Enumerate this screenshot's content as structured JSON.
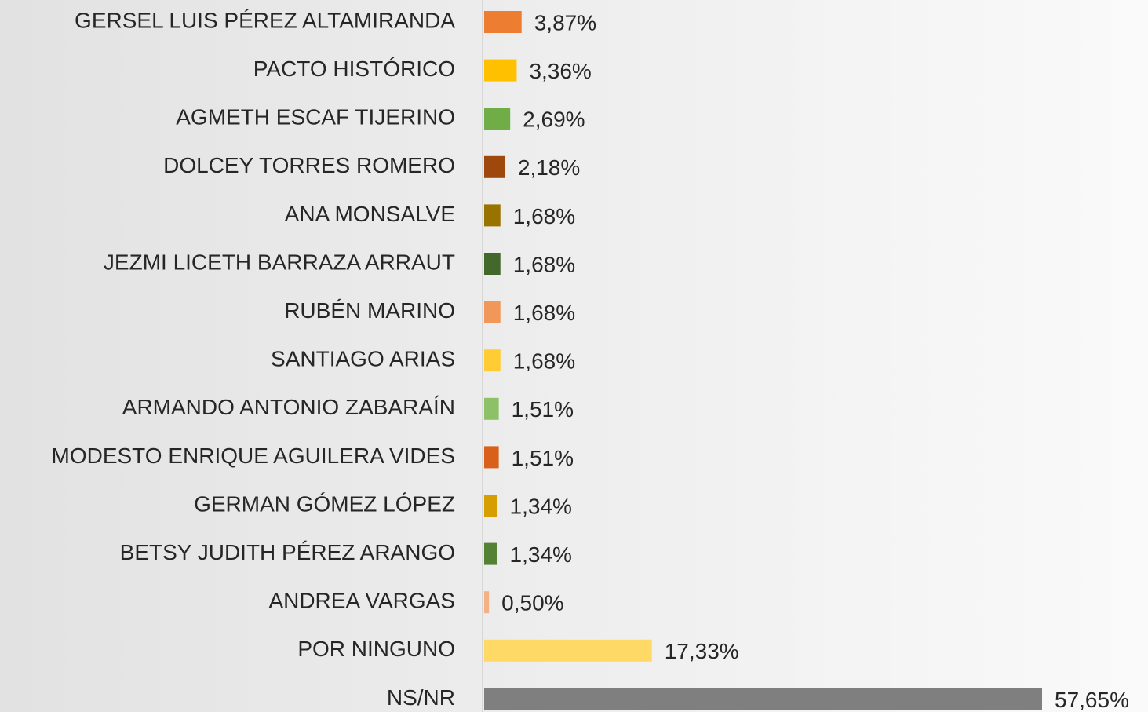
{
  "chart_data": {
    "type": "bar",
    "orientation": "horizontal",
    "categories": [
      "GERSEL LUIS PÉREZ ALTAMIRANDA",
      "PACTO HISTÓRICO",
      "AGMETH ESCAF TIJERINO",
      "DOLCEY TORRES ROMERO",
      "ANA MONSALVE",
      "JEZMI LICETH BARRAZA ARRAUT",
      "RUBÉN MARINO",
      "SANTIAGO ARIAS",
      "ARMANDO ANTONIO ZABARAÍN",
      "MODESTO ENRIQUE AGUILERA VIDES",
      "GERMAN GÓMEZ LÓPEZ",
      "BETSY JUDITH PÉREZ ARANGO",
      "ANDREA VARGAS",
      "POR NINGUNO",
      "NS/NR"
    ],
    "values": [
      3.87,
      3.36,
      2.69,
      2.18,
      1.68,
      1.68,
      1.68,
      1.68,
      1.51,
      1.51,
      1.34,
      1.34,
      0.5,
      17.33,
      57.65
    ],
    "value_labels": [
      "3,87%",
      "3,36%",
      "2,69%",
      "2,18%",
      "1,68%",
      "1,68%",
      "1,68%",
      "1,68%",
      "1,51%",
      "1,51%",
      "1,34%",
      "1,34%",
      "0,50%",
      "17,33%",
      "57,65%"
    ],
    "colors": [
      "#ED7D31",
      "#FFC000",
      "#70AD47",
      "#9E480E",
      "#997300",
      "#43682B",
      "#F1975A",
      "#FFCD33",
      "#8CC168",
      "#D9601A",
      "#D69E00",
      "#548235",
      "#F4B183",
      "#FFD966",
      "#7F7F7F"
    ]
  }
}
